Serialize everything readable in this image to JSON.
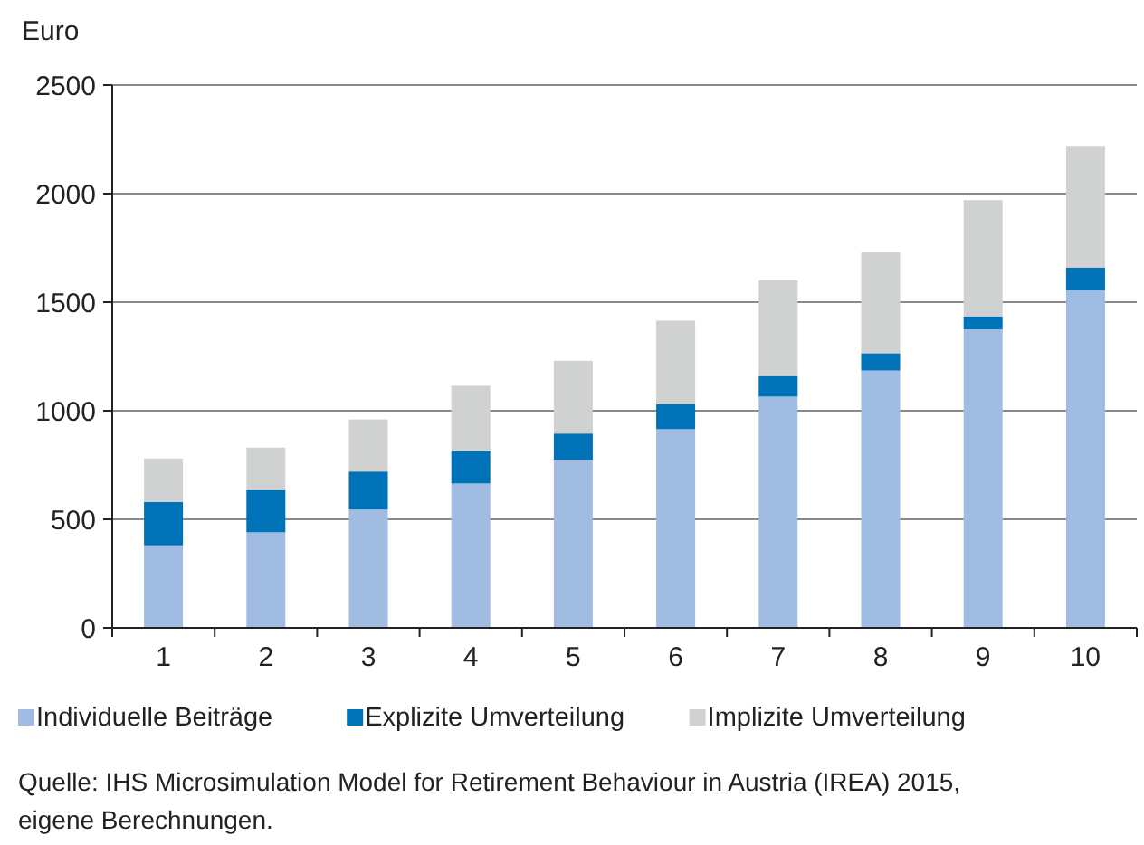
{
  "chart_data": {
    "type": "bar",
    "stacked": true,
    "ylabel": "Euro",
    "categories": [
      "1",
      "2",
      "3",
      "4",
      "5",
      "6",
      "7",
      "8",
      "9",
      "10"
    ],
    "series": [
      {
        "name": "Individuelle Beiträge",
        "color": "#a0bce3",
        "values": [
          380,
          440,
          545,
          665,
          775,
          915,
          1065,
          1185,
          1375,
          1555
        ]
      },
      {
        "name": "Explizite Umverteilung",
        "color": "#0072b8",
        "values": [
          200,
          195,
          175,
          150,
          120,
          115,
          95,
          80,
          60,
          105
        ]
      },
      {
        "name": "Implizite Umverteilung",
        "color": "#d0d1d1",
        "values": [
          200,
          195,
          240,
          300,
          335,
          385,
          440,
          465,
          535,
          560
        ]
      }
    ],
    "ylim": [
      0,
      2500
    ],
    "yticks": [
      0,
      500,
      1000,
      1500,
      2000,
      2500
    ],
    "grid": "y",
    "legend": "bottom",
    "annotations": [
      "Quelle: IHS Microsimulation Model for Retirement Behaviour in Austria (IREA) 2015, eigene Berechnungen."
    ]
  }
}
